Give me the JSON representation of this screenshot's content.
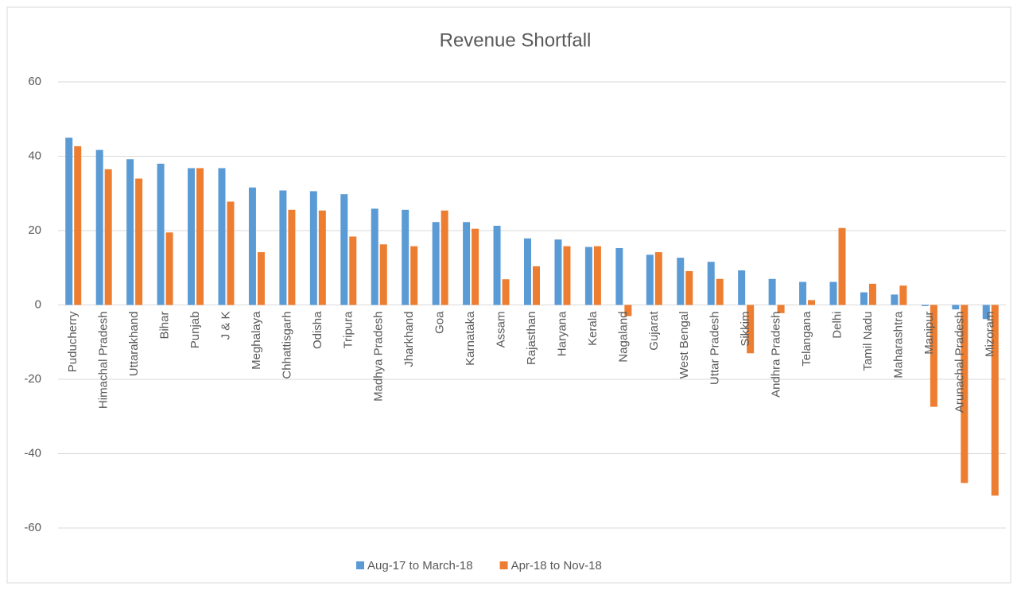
{
  "chart_data": {
    "type": "bar",
    "title": "Revenue Shortfall",
    "categories": [
      "Puducherry",
      "Himachal Pradesh",
      "Uttarakhand",
      "Bihar",
      "Punjab",
      "J & K",
      "Meghalaya",
      "Chhattisgarh",
      "Odisha",
      "Tripura",
      "Madhya Pradesh",
      "Jharkhand",
      "Goa",
      "Karnataka",
      "Assam",
      "Rajasthan",
      "Haryana",
      "Kerala",
      "Nagaland",
      "Gujarat",
      "West Bengal",
      "Uttar Pradesh",
      "Sikkim",
      "Andhra Pradesh",
      "Telangana",
      "Delhi",
      "Tamil Nadu",
      "Maharashtra",
      "Manipur",
      "Arunachal Pradesh",
      "Mizoram"
    ],
    "series": [
      {
        "name": "Aug-17 to March-18",
        "color": "#5b9bd5",
        "values": [
          45,
          41.7,
          39.2,
          38,
          36.8,
          36.8,
          31.6,
          30.8,
          30.6,
          29.8,
          25.9,
          25.6,
          22.3,
          22.3,
          21.3,
          17.9,
          17.6,
          15.6,
          15.3,
          13.5,
          12.7,
          11.6,
          9.3,
          7,
          6.2,
          6.2,
          3.4,
          2.8,
          -0.3,
          -1.2,
          -3.8
        ]
      },
      {
        "name": "Apr-18 to Nov-18",
        "color": "#ed7d31",
        "values": [
          42.7,
          36.5,
          34,
          19.5,
          36.8,
          27.8,
          14.2,
          25.6,
          25.4,
          18.4,
          16.3,
          15.8,
          25.4,
          20.5,
          6.9,
          10.4,
          15.8,
          15.8,
          -3,
          14.2,
          9.1,
          7,
          -13,
          -2.2,
          1.3,
          20.7,
          5.7,
          5.2,
          -27.4,
          -47.9,
          -51.3
        ]
      }
    ],
    "ylim": [
      -60,
      60
    ],
    "yticks": [
      -60,
      -40,
      -20,
      0,
      20,
      40,
      60
    ],
    "grid": true,
    "legend": "bottom"
  }
}
